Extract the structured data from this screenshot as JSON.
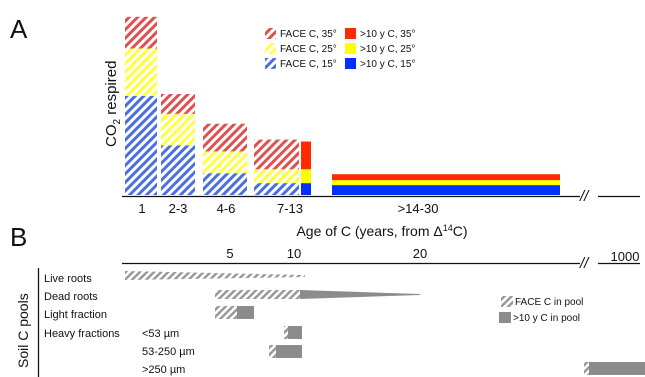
{
  "panel_a_label": "A",
  "panel_b_label": "B",
  "chart_data": [
    {
      "type": "bar",
      "panel": "A",
      "ylabel_main": "CO",
      "ylabel_sub": "2",
      "ylabel_rest": " respired",
      "xlabel_main": "Age of C (years, from Δ",
      "xlabel_sup": "14",
      "xlabel_rest": "C)",
      "categories": [
        "1",
        "2-3",
        "4-6",
        "7-13",
        ">14-30"
      ],
      "axis_break": "//",
      "legend": [
        {
          "label": "FACE C, 35°",
          "color": "#e05050",
          "pattern": true
        },
        {
          "label": ">10 y C, 35°",
          "color": "#ff2a00",
          "pattern": false
        },
        {
          "label": "FACE C, 25°",
          "color": "#ffff40",
          "pattern": true
        },
        {
          "label": ">10 y C, 25°",
          "color": "#ffff00",
          "pattern": false
        },
        {
          "label": "FACE C, 15°",
          "color": "#4a6fe0",
          "pattern": true
        },
        {
          "label": ">10 y C, 15°",
          "color": "#0030ff",
          "pattern": false
        }
      ],
      "series": [
        {
          "name": "FACE C, 15°",
          "values": [
            100,
            50,
            22,
            12,
            0
          ]
        },
        {
          "name": "FACE C, 25°",
          "values": [
            48,
            32,
            22,
            14,
            0
          ]
        },
        {
          "name": "FACE C, 35°",
          "values": [
            32,
            20,
            28,
            30,
            0
          ]
        },
        {
          "name": ">10 y C, 15°",
          "values": [
            0,
            0,
            0,
            12,
            10
          ]
        },
        {
          "name": ">10 y C, 25°",
          "values": [
            0,
            0,
            0,
            14,
            5
          ]
        },
        {
          "name": ">10 y C, 35°",
          "values": [
            0,
            0,
            0,
            28,
            6
          ]
        }
      ]
    },
    {
      "type": "bar",
      "panel": "B",
      "ylabel": "Soil C pools",
      "ticks": [
        {
          "label": "5",
          "value": 5
        },
        {
          "label": "10",
          "value": 10
        },
        {
          "label": "20",
          "value": 20
        },
        {
          "label": "1000",
          "value": 1000
        }
      ],
      "axis_break": "//",
      "legend": [
        {
          "label": "FACE C in pool",
          "pattern": true
        },
        {
          "label": ">10 y C in pool",
          "pattern": false
        }
      ],
      "pools": [
        {
          "label": "Live roots",
          "face_c": [
            0,
            10
          ],
          "old_c": null
        },
        {
          "label": "Dead roots",
          "face_c": [
            5,
            10
          ],
          "old_c": [
            10,
            22
          ]
        },
        {
          "label": "Light fraction",
          "face_c": [
            5,
            6.5
          ],
          "old_c": [
            6.5,
            7.3
          ]
        },
        {
          "label": "Heavy fractions",
          "sub": "<53 µm",
          "face_c": [
            9,
            9.2
          ],
          "old_c": [
            9.2,
            10
          ]
        },
        {
          "label": "",
          "sub": "53-250 µm",
          "face_c": [
            8,
            8.5
          ],
          "old_c": [
            8.5,
            10
          ]
        },
        {
          "label": "",
          "sub": ">250 µm",
          "face_c": [
            1000,
            1001
          ],
          "old_c": [
            1001,
            1100
          ]
        }
      ]
    }
  ]
}
